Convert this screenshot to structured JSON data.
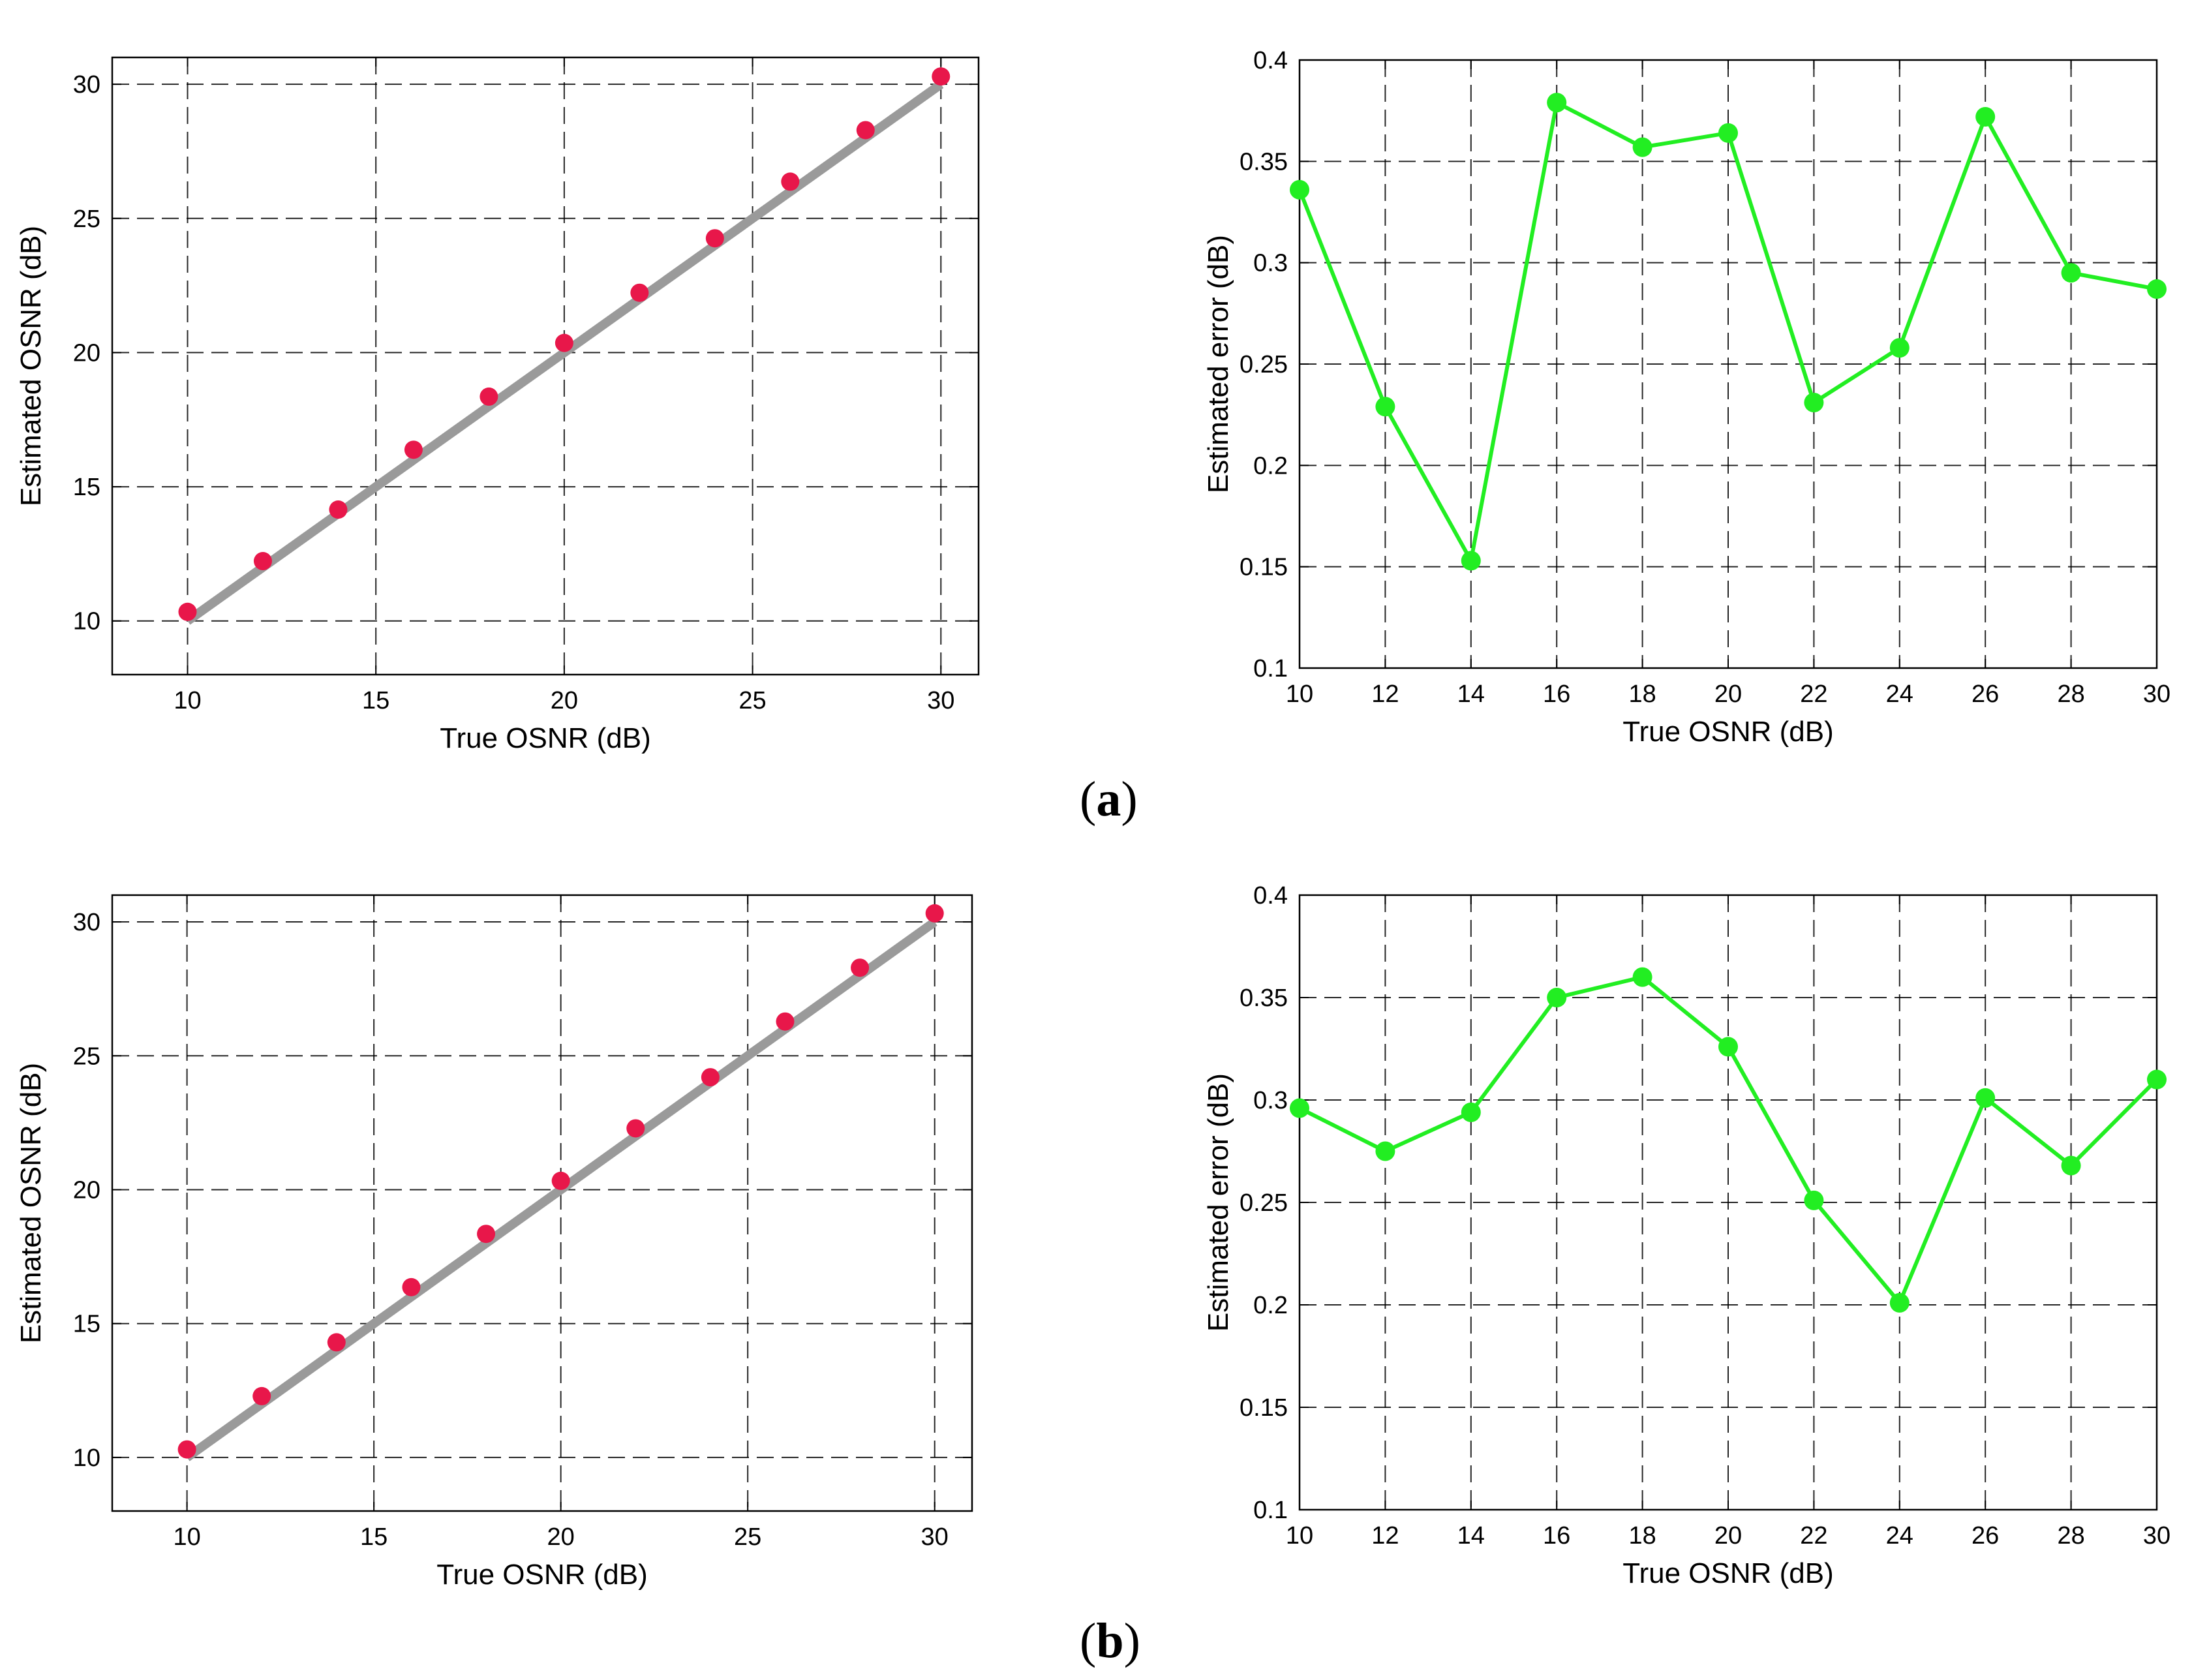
{
  "colors": {
    "marker_red": "#e8174a",
    "fit_line_gray": "#9a9a9a",
    "error_green": "#22ee22",
    "grid": "#000000"
  },
  "panel_labels": [
    {
      "open": "(",
      "letter": "a",
      "close": ")"
    },
    {
      "open": "(",
      "letter": "b",
      "close": ")"
    }
  ],
  "chart_data": [
    {
      "id": "a-left",
      "type": "scatter",
      "title": "",
      "xlabel": "True OSNR (dB)",
      "ylabel": "Estimated OSNR (dB)",
      "xlim": [
        8,
        31
      ],
      "ylim": [
        8,
        31
      ],
      "xticks": [
        10,
        15,
        20,
        25,
        30
      ],
      "yticks": [
        10,
        15,
        20,
        25,
        30
      ],
      "grid": true,
      "series": [
        {
          "name": "Estimated",
          "style": "markers",
          "x": [
            10,
            12,
            14,
            16,
            18,
            20,
            22,
            24,
            26,
            28,
            30
          ],
          "y": [
            10.34,
            12.23,
            14.15,
            16.38,
            18.36,
            20.36,
            22.23,
            24.26,
            26.37,
            28.29,
            30.29
          ]
        },
        {
          "name": "Ideal",
          "style": "line",
          "x": [
            10,
            30
          ],
          "y": [
            10,
            30
          ]
        }
      ]
    },
    {
      "id": "a-right",
      "type": "line",
      "title": "",
      "xlabel": "True OSNR (dB)",
      "ylabel": "Estimated error (dB)",
      "xlim": [
        10,
        30
      ],
      "ylim": [
        0.1,
        0.4
      ],
      "xticks": [
        10,
        12,
        14,
        16,
        18,
        20,
        22,
        24,
        26,
        28,
        30
      ],
      "yticks": [
        0.1,
        0.15,
        0.2,
        0.25,
        0.3,
        0.35,
        0.4
      ],
      "grid": true,
      "series": [
        {
          "name": "Error",
          "style": "line-markers",
          "x": [
            10,
            12,
            14,
            16,
            18,
            20,
            22,
            24,
            26,
            28,
            30
          ],
          "y": [
            0.336,
            0.229,
            0.153,
            0.379,
            0.357,
            0.364,
            0.231,
            0.258,
            0.372,
            0.295,
            0.287
          ]
        }
      ]
    },
    {
      "id": "b-left",
      "type": "scatter",
      "title": "",
      "xlabel": "True OSNR (dB)",
      "ylabel": "Estimated OSNR (dB)",
      "xlim": [
        8,
        31
      ],
      "ylim": [
        8,
        31
      ],
      "xticks": [
        10,
        15,
        20,
        25,
        30
      ],
      "yticks": [
        10,
        15,
        20,
        25,
        30
      ],
      "grid": true,
      "series": [
        {
          "name": "Estimated",
          "style": "markers",
          "x": [
            10,
            12,
            14,
            16,
            18,
            20,
            22,
            24,
            26,
            28,
            30
          ],
          "y": [
            10.3,
            12.29,
            14.3,
            16.36,
            18.35,
            20.33,
            22.29,
            24.2,
            26.28,
            28.29,
            30.32
          ]
        },
        {
          "name": "Ideal",
          "style": "line",
          "x": [
            10,
            30
          ],
          "y": [
            10,
            30
          ]
        }
      ]
    },
    {
      "id": "b-right",
      "type": "line",
      "title": "",
      "xlabel": "True OSNR (dB)",
      "ylabel": "Estimated error (dB)",
      "xlim": [
        10,
        30
      ],
      "ylim": [
        0.1,
        0.4
      ],
      "xticks": [
        10,
        12,
        14,
        16,
        18,
        20,
        22,
        24,
        26,
        28,
        30
      ],
      "yticks": [
        0.1,
        0.15,
        0.2,
        0.25,
        0.3,
        0.35,
        0.4
      ],
      "grid": true,
      "series": [
        {
          "name": "Error",
          "style": "line-markers",
          "x": [
            10,
            12,
            14,
            16,
            18,
            20,
            22,
            24,
            26,
            28,
            30
          ],
          "y": [
            0.296,
            0.275,
            0.294,
            0.35,
            0.36,
            0.326,
            0.251,
            0.201,
            0.301,
            0.268,
            0.31
          ]
        }
      ]
    }
  ]
}
